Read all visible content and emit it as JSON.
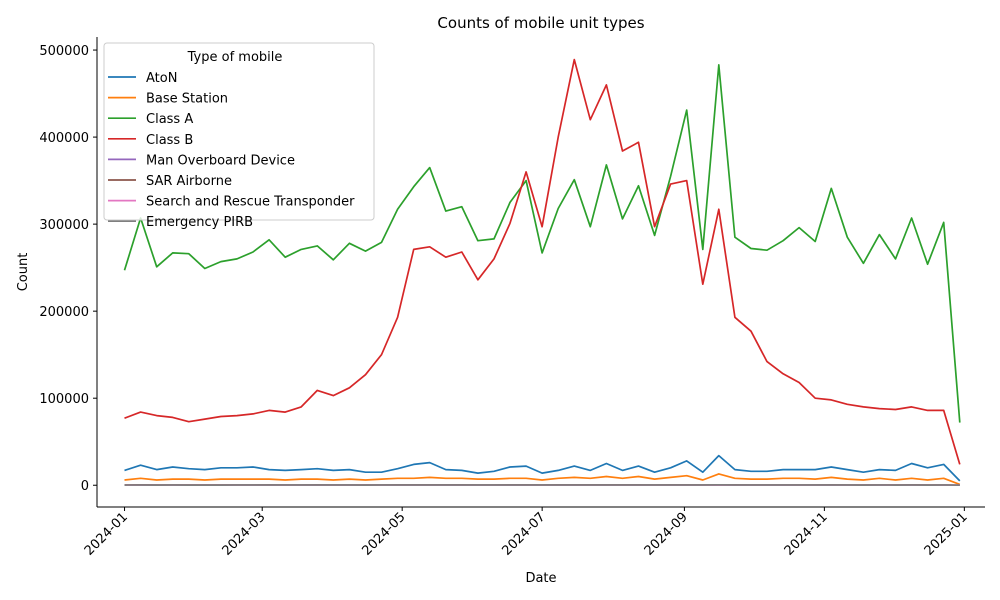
{
  "chart_data": {
    "type": "line",
    "title": "Counts of mobile unit types",
    "xlabel": "Date",
    "ylabel": "Count",
    "xlim": [
      "2023-12-20",
      "2025-01-10"
    ],
    "ylim": [
      -25000,
      515000
    ],
    "x_ticks": [
      "2024-01",
      "2024-03",
      "2024-05",
      "2024-07",
      "2024-09",
      "2024-11",
      "2025-01"
    ],
    "y_ticks": [
      0,
      100000,
      200000,
      300000,
      400000,
      500000
    ],
    "legend": {
      "title": "Type of mobile",
      "placement": "upper-left"
    },
    "x": [
      "2024-01-01",
      "2024-01-08",
      "2024-01-15",
      "2024-01-22",
      "2024-01-29",
      "2024-02-05",
      "2024-02-12",
      "2024-02-19",
      "2024-02-26",
      "2024-03-04",
      "2024-03-11",
      "2024-03-18",
      "2024-03-25",
      "2024-04-01",
      "2024-04-08",
      "2024-04-15",
      "2024-04-22",
      "2024-04-29",
      "2024-05-06",
      "2024-05-13",
      "2024-05-20",
      "2024-05-27",
      "2024-06-03",
      "2024-06-10",
      "2024-06-17",
      "2024-06-24",
      "2024-07-01",
      "2024-07-08",
      "2024-07-15",
      "2024-07-22",
      "2024-07-29",
      "2024-08-05",
      "2024-08-12",
      "2024-08-19",
      "2024-08-26",
      "2024-09-02",
      "2024-09-09",
      "2024-09-16",
      "2024-09-23",
      "2024-09-30",
      "2024-10-07",
      "2024-10-14",
      "2024-10-21",
      "2024-10-28",
      "2024-11-04",
      "2024-11-11",
      "2024-11-18",
      "2024-11-25",
      "2024-12-02",
      "2024-12-09",
      "2024-12-16",
      "2024-12-23",
      "2024-12-30"
    ],
    "series": [
      {
        "name": "AtoN",
        "color": "#1f77b4",
        "values": [
          17000,
          23000,
          18000,
          21000,
          19000,
          18000,
          20000,
          20000,
          21000,
          18000,
          17000,
          18000,
          19000,
          17000,
          18000,
          15000,
          15000,
          19000,
          24000,
          26000,
          18000,
          17000,
          14000,
          16000,
          21000,
          22000,
          14000,
          17000,
          22000,
          17000,
          25000,
          17000,
          22000,
          15000,
          20000,
          28000,
          15000,
          34000,
          18000,
          16000,
          16000,
          18000,
          18000,
          18000,
          21000,
          18000,
          15000,
          18000,
          17000,
          25000,
          20000,
          24000,
          5000
        ]
      },
      {
        "name": "Base Station",
        "color": "#ff7f0e",
        "values": [
          6000,
          8000,
          6000,
          7000,
          7000,
          6000,
          7000,
          7000,
          7000,
          7000,
          6000,
          7000,
          7000,
          6000,
          7000,
          6000,
          7000,
          8000,
          8000,
          9000,
          8000,
          8000,
          7000,
          7000,
          8000,
          8000,
          6000,
          8000,
          9000,
          8000,
          10000,
          8000,
          10000,
          7000,
          9000,
          11000,
          6000,
          13000,
          8000,
          7000,
          7000,
          8000,
          8000,
          7000,
          9000,
          7000,
          6000,
          8000,
          6000,
          8000,
          6000,
          8000,
          1000
        ]
      },
      {
        "name": "Class A",
        "color": "#2ca02c",
        "values": [
          247000,
          307000,
          251000,
          267000,
          266000,
          249000,
          257000,
          260000,
          268000,
          282000,
          262000,
          271000,
          275000,
          259000,
          278000,
          269000,
          279000,
          317000,
          343000,
          365000,
          315000,
          320000,
          281000,
          283000,
          325000,
          350000,
          267000,
          318000,
          351000,
          297000,
          368000,
          306000,
          344000,
          287000,
          355000,
          431000,
          271000,
          483000,
          285000,
          272000,
          270000,
          281000,
          296000,
          280000,
          341000,
          285000,
          255000,
          288000,
          260000,
          307000,
          254000,
          302000,
          72000
        ]
      },
      {
        "name": "Class B",
        "color": "#d62728",
        "values": [
          77000,
          84000,
          80000,
          78000,
          73000,
          76000,
          79000,
          80000,
          82000,
          86000,
          84000,
          90000,
          109000,
          103000,
          112000,
          127000,
          150000,
          193000,
          271000,
          274000,
          262000,
          268000,
          236000,
          260000,
          301000,
          360000,
          297000,
          400000,
          489000,
          420000,
          460000,
          384000,
          394000,
          297000,
          346000,
          350000,
          231000,
          317000,
          193000,
          177000,
          142000,
          128000,
          118000,
          100000,
          98000,
          93000,
          90000,
          88000,
          87000,
          90000,
          86000,
          86000,
          24000
        ]
      },
      {
        "name": "Man Overboard Device",
        "color": "#9467bd",
        "values": [
          50,
          60,
          40,
          50,
          50,
          40,
          50,
          50,
          60,
          50,
          40,
          50,
          60,
          50,
          50,
          40,
          60,
          70,
          80,
          80,
          70,
          60,
          50,
          60,
          70,
          80,
          60,
          70,
          80,
          70,
          80,
          60,
          70,
          50,
          70,
          80,
          50,
          90,
          60,
          50,
          50,
          60,
          60,
          50,
          60,
          50,
          40,
          50,
          40,
          50,
          40,
          50,
          10
        ]
      },
      {
        "name": "SAR Airborne",
        "color": "#8c564b",
        "values": [
          300,
          350,
          300,
          320,
          310,
          300,
          310,
          320,
          330,
          340,
          320,
          330,
          340,
          320,
          330,
          310,
          330,
          360,
          380,
          400,
          360,
          350,
          320,
          330,
          360,
          380,
          320,
          360,
          390,
          350,
          400,
          350,
          380,
          330,
          370,
          420,
          320,
          450,
          340,
          320,
          320,
          330,
          330,
          320,
          350,
          320,
          300,
          330,
          300,
          340,
          300,
          330,
          80
        ]
      },
      {
        "name": "Search and Rescue Transponder",
        "color": "#e377c2",
        "values": [
          20,
          25,
          20,
          20,
          20,
          20,
          20,
          20,
          25,
          20,
          20,
          20,
          25,
          20,
          20,
          20,
          25,
          30,
          30,
          30,
          25,
          25,
          20,
          20,
          25,
          30,
          20,
          25,
          30,
          25,
          30,
          25,
          30,
          20,
          25,
          30,
          20,
          35,
          25,
          20,
          20,
          25,
          25,
          20,
          25,
          20,
          20,
          20,
          20,
          25,
          20,
          25,
          5
        ]
      },
      {
        "name": "Emergency PIRB",
        "color": "#7f7f7f",
        "values": [
          200,
          250,
          200,
          220,
          210,
          200,
          210,
          220,
          230,
          240,
          220,
          230,
          240,
          220,
          230,
          210,
          230,
          260,
          280,
          300,
          260,
          250,
          220,
          230,
          260,
          280,
          220,
          260,
          290,
          250,
          300,
          250,
          280,
          230,
          270,
          320,
          220,
          350,
          240,
          220,
          220,
          230,
          230,
          220,
          250,
          220,
          200,
          230,
          200,
          240,
          200,
          230,
          60
        ]
      }
    ]
  }
}
